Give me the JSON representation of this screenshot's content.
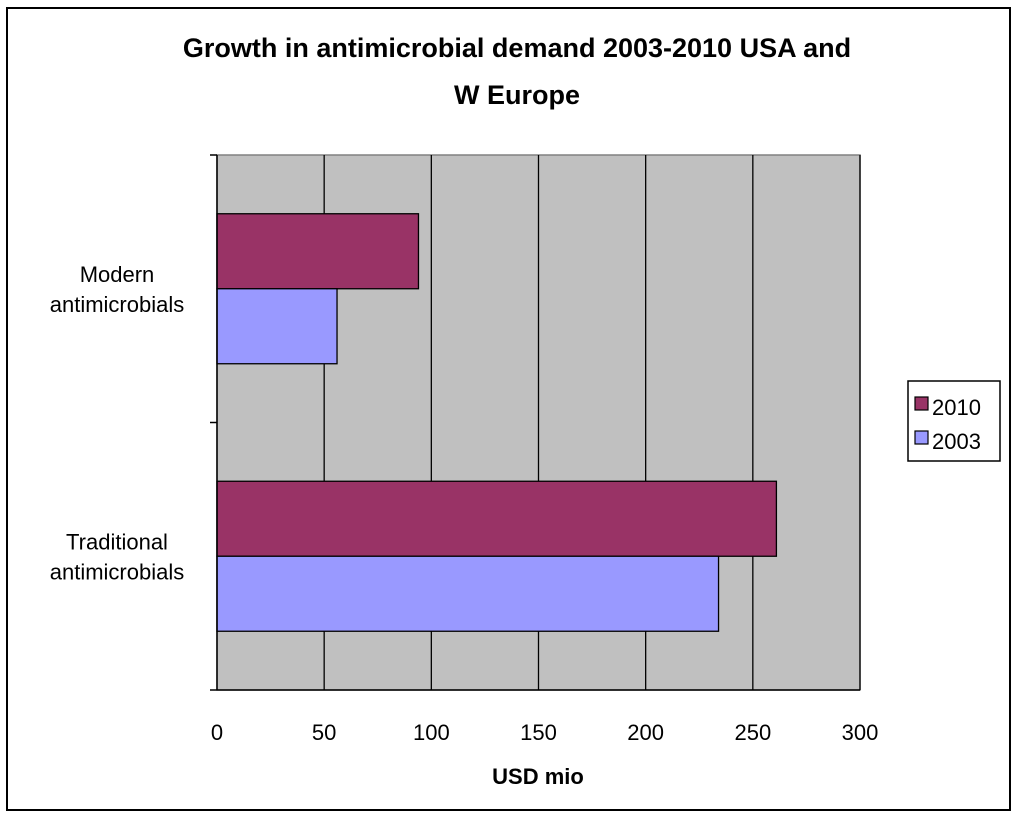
{
  "chart_data": {
    "type": "bar",
    "orientation": "horizontal",
    "title": "Growth in antimicrobial demand 2003-2010 USA and W Europe",
    "title_lines": [
      "Growth in antimicrobial demand 2003-2010 USA and",
      "W Europe"
    ],
    "xlabel": "USD mio",
    "ylabel": "",
    "xlim": [
      0,
      300
    ],
    "xticks": [
      0,
      50,
      100,
      150,
      200,
      250,
      300
    ],
    "grid": true,
    "legend_position": "right",
    "categories": [
      {
        "lines": [
          "Modern",
          "antimicrobials"
        ]
      },
      {
        "lines": [
          "Traditional",
          "antimicrobials"
        ]
      }
    ],
    "series": [
      {
        "name": "2010",
        "color": "#993366",
        "values": [
          94,
          261
        ]
      },
      {
        "name": "2003",
        "color": "#9999ff",
        "values": [
          56,
          234
        ]
      }
    ],
    "plot_background": "#c0c0c0"
  }
}
